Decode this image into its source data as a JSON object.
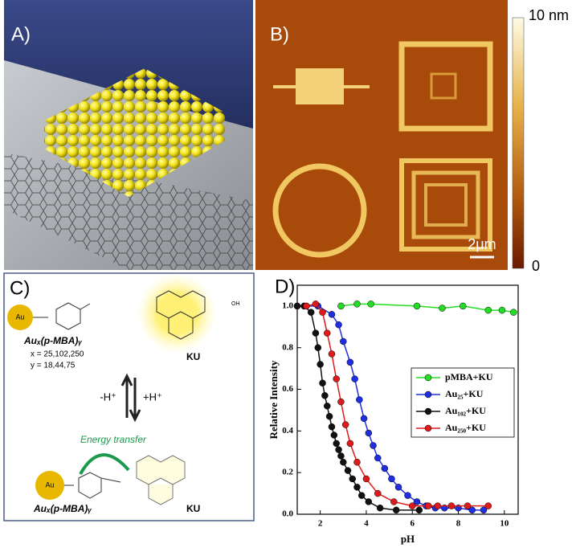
{
  "panel_a": {
    "label": "A)"
  },
  "panel_b": {
    "label": "B)",
    "colorbar_max": "10 nm",
    "colorbar_min": "0",
    "scale_bar": "2μm"
  },
  "panel_c": {
    "label": "C)",
    "au_left": "Au",
    "formula_top": "Auₓ(p-MBA)ᵧ",
    "x_values": "x = 25,102,250",
    "y_values": "y = 18,44,75",
    "ku_top": "KU",
    "acid": "-H⁺",
    "base": "+H⁺",
    "energy_transfer": "Energy transfer",
    "au_bottom": "Au",
    "formula_bottom": "Auₓ(p-MBA)ᵧ",
    "ku_bottom": "KU",
    "oh": "OH"
  },
  "chart_data": {
    "type": "line",
    "panel_label": "D)",
    "x_label": "pH",
    "y_label": "Relative Intensity",
    "xlim": [
      1,
      10.6
    ],
    "ylim": [
      0,
      1.1
    ],
    "xticks": [
      2,
      4,
      6,
      8,
      10
    ],
    "yticks": [
      {
        "value": 0,
        "label": "0.0"
      },
      {
        "value": 0.2,
        "label": "0.2"
      },
      {
        "value": 0.4,
        "label": "0.4"
      },
      {
        "value": 0.6,
        "label": "0.6"
      },
      {
        "value": 0.8,
        "label": "0.8"
      },
      {
        "value": 1,
        "label": "1.0"
      }
    ],
    "series": [
      {
        "name": "pMBA+KU",
        "color": "#22dd22",
        "x": [
          2.9,
          3.6,
          4.2,
          6.2,
          7.3,
          8.2,
          9.3,
          9.9,
          10.4
        ],
        "values": [
          1.0,
          1.01,
          1.01,
          1.0,
          0.99,
          1.0,
          0.98,
          0.98,
          0.97
        ]
      },
      {
        "name": "Au₂₅+KU",
        "color": "#1f2fe0",
        "x": [
          1.0,
          1.9,
          2.5,
          2.8,
          3.0,
          3.3,
          3.5,
          3.7,
          3.9,
          4.1,
          4.3,
          4.5,
          4.8,
          5.1,
          5.4,
          5.8,
          6.2,
          6.6,
          7.0,
          7.4,
          8.0,
          8.6,
          9.1
        ],
        "values": [
          1.0,
          1.0,
          0.96,
          0.91,
          0.83,
          0.73,
          0.65,
          0.55,
          0.46,
          0.39,
          0.33,
          0.27,
          0.22,
          0.17,
          0.13,
          0.09,
          0.06,
          0.04,
          0.03,
          0.03,
          0.03,
          0.02,
          0.02
        ]
      },
      {
        "name": "Au₁₀₂+KU",
        "color": "#111111",
        "x": [
          1.0,
          1.3,
          1.6,
          1.8,
          1.9,
          2.0,
          2.1,
          2.2,
          2.3,
          2.4,
          2.5,
          2.6,
          2.7,
          2.8,
          2.9,
          3.0,
          3.2,
          3.4,
          3.6,
          3.8,
          4.1,
          4.6,
          5.3,
          6.3
        ],
        "values": [
          1.0,
          1.0,
          0.97,
          0.87,
          0.8,
          0.72,
          0.63,
          0.57,
          0.52,
          0.47,
          0.42,
          0.38,
          0.34,
          0.31,
          0.28,
          0.25,
          0.21,
          0.17,
          0.13,
          0.09,
          0.06,
          0.03,
          0.02,
          0.02
        ]
      },
      {
        "name": "Au₂₅₀+KU",
        "color": "#e01a1a",
        "x": [
          1.4,
          1.8,
          2.1,
          2.3,
          2.5,
          2.7,
          2.9,
          3.1,
          3.3,
          3.6,
          4.0,
          4.5,
          5.2,
          6.0,
          6.7,
          7.1,
          7.7,
          8.4,
          9.3
        ],
        "values": [
          1.0,
          1.01,
          0.97,
          0.87,
          0.77,
          0.65,
          0.54,
          0.43,
          0.34,
          0.25,
          0.17,
          0.1,
          0.06,
          0.04,
          0.04,
          0.04,
          0.04,
          0.04,
          0.04
        ]
      }
    ]
  }
}
